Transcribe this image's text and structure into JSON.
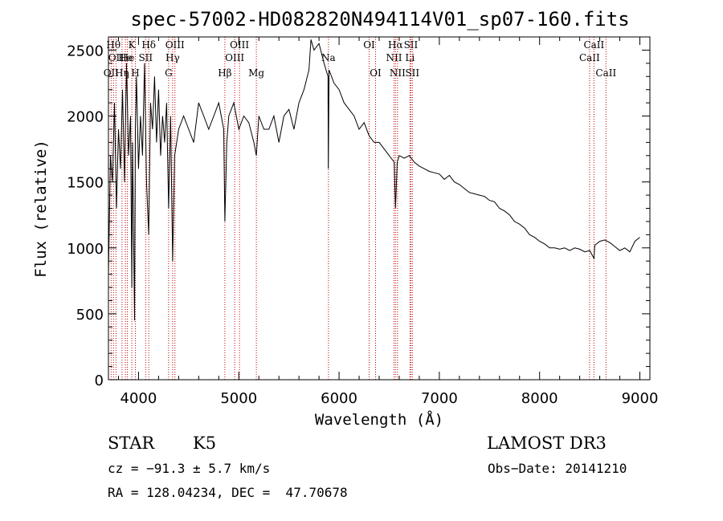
{
  "chart_data": {
    "type": "line",
    "title": "spec-57002-HD082820N494114V01_sp07-160.fits",
    "xlabel": "Wavelength (Å)",
    "ylabel": "Flux (relative)",
    "xlim": [
      3700,
      9100
    ],
    "ylim": [
      0,
      2600
    ],
    "xticks": [
      4000,
      5000,
      6000,
      7000,
      8000,
      9000
    ],
    "yticks": [
      0,
      500,
      1000,
      1500,
      2000,
      2500
    ],
    "grid": false,
    "series": [
      {
        "x": [
          3700,
          3720,
          3740,
          3760,
          3780,
          3800,
          3820,
          3840,
          3860,
          3880,
          3900,
          3920,
          3933,
          3940,
          3960,
          3968,
          3980,
          4000,
          4020,
          4040,
          4060,
          4080,
          4101,
          4120,
          4140,
          4160,
          4180,
          4200,
          4220,
          4240,
          4260,
          4280,
          4300,
          4320,
          4340,
          4360,
          4380,
          4400,
          4450,
          4500,
          4550,
          4600,
          4650,
          4700,
          4750,
          4800,
          4850,
          4861,
          4880,
          4900,
          4950,
          5000,
          5050,
          5100,
          5150,
          5175,
          5200,
          5250,
          5300,
          5350,
          5400,
          5450,
          5500,
          5550,
          5600,
          5650,
          5700,
          5720,
          5750,
          5800,
          5850,
          5890,
          5893,
          5900,
          5950,
          6000,
          6050,
          6100,
          6150,
          6200,
          6250,
          6300,
          6350,
          6400,
          6450,
          6500,
          6550,
          6563,
          6580,
          6600,
          6650,
          6700,
          6750,
          6800,
          6850,
          6900,
          6950,
          7000,
          7050,
          7100,
          7150,
          7200,
          7250,
          7300,
          7350,
          7400,
          7450,
          7500,
          7550,
          7600,
          7650,
          7700,
          7750,
          7800,
          7850,
          7900,
          7950,
          8000,
          8050,
          8100,
          8150,
          8200,
          8250,
          8300,
          8350,
          8400,
          8450,
          8500,
          8542,
          8550,
          8600,
          8650,
          8700,
          8750,
          8800,
          8850,
          8900,
          8950,
          9000
        ],
        "y": [
          800,
          1700,
          1500,
          2100,
          1300,
          1900,
          1600,
          2200,
          1500,
          2400,
          1700,
          2000,
          700,
          1800,
          450,
          1900,
          2300,
          1600,
          2000,
          1700,
          2400,
          1500,
          1100,
          2100,
          1900,
          2300,
          1800,
          2200,
          1700,
          2000,
          1800,
          2100,
          1300,
          2000,
          900,
          1700,
          1800,
          1900,
          2000,
          1900,
          1800,
          2100,
          2000,
          1900,
          2000,
          2100,
          1900,
          1200,
          1800,
          2000,
          2100,
          1900,
          2000,
          1950,
          1800,
          1700,
          2000,
          1900,
          1900,
          2000,
          1800,
          2000,
          2050,
          1900,
          2100,
          2200,
          2350,
          2580,
          2500,
          2550,
          2400,
          2300,
          1600,
          2350,
          2250,
          2200,
          2100,
          2050,
          2000,
          1900,
          1950,
          1850,
          1800,
          1800,
          1750,
          1700,
          1650,
          1300,
          1650,
          1700,
          1680,
          1700,
          1650,
          1620,
          1600,
          1580,
          1570,
          1560,
          1520,
          1550,
          1500,
          1480,
          1450,
          1420,
          1410,
          1400,
          1390,
          1360,
          1350,
          1300,
          1280,
          1250,
          1200,
          1180,
          1150,
          1100,
          1080,
          1050,
          1030,
          1000,
          1000,
          990,
          1000,
          980,
          1000,
          990,
          970,
          980,
          920,
          1020,
          1050,
          1060,
          1040,
          1010,
          980,
          1000,
          970,
          1050,
          1080
        ]
      }
    ],
    "line_markers": [
      {
        "x": 3727,
        "label": "OII",
        "row": 2
      },
      {
        "x": 3750,
        "label": "Hθ",
        "row": 0
      },
      {
        "x": 3775,
        "label": "OII",
        "row": 1
      },
      {
        "x": 3835,
        "label": "Hη",
        "row": 2
      },
      {
        "x": 3869,
        "label": "He",
        "row": 1
      },
      {
        "x": 3889,
        "label": "He",
        "row": 1
      },
      {
        "x": 3933,
        "label": "K",
        "row": 0
      },
      {
        "x": 3968,
        "label": "H",
        "row": 2
      },
      {
        "x": 4071,
        "label": "SII",
        "row": 1
      },
      {
        "x": 4102,
        "label": "Hδ",
        "row": 0
      },
      {
        "x": 4300,
        "label": "G",
        "row": 2
      },
      {
        "x": 4340,
        "label": "Hγ",
        "row": 1
      },
      {
        "x": 4363,
        "label": "OIII",
        "row": 0
      },
      {
        "x": 4861,
        "label": "Hβ",
        "row": 2
      },
      {
        "x": 4959,
        "label": "OIII",
        "row": 1
      },
      {
        "x": 5007,
        "label": "OIII",
        "row": 0
      },
      {
        "x": 5175,
        "label": "Mg",
        "row": 2
      },
      {
        "x": 5894,
        "label": "Na",
        "row": 1
      },
      {
        "x": 6300,
        "label": "OI",
        "row": 0
      },
      {
        "x": 6364,
        "label": "OI",
        "row": 2
      },
      {
        "x": 6548,
        "label": "NII",
        "row": 1
      },
      {
        "x": 6563,
        "label": "Hα",
        "row": 0
      },
      {
        "x": 6583,
        "label": "NII",
        "row": 2
      },
      {
        "x": 6707,
        "label": "Li",
        "row": 1
      },
      {
        "x": 6716,
        "label": "SII",
        "row": 0
      },
      {
        "x": 6731,
        "label": "SII",
        "row": 2
      },
      {
        "x": 8498,
        "label": "CaII",
        "row": 1
      },
      {
        "x": 8542,
        "label": "CaII",
        "row": 0
      },
      {
        "x": 8662,
        "label": "CaII",
        "row": 2
      }
    ]
  },
  "info": {
    "class": "STAR",
    "subclass": "K5",
    "survey": "LAMOST DR3",
    "cz": "cz = −91.3 ± 5.7 km/s",
    "obs_date": "Obs−Date: 20141210",
    "coords": "RA = 128.04234, DEC =  47.70678"
  }
}
